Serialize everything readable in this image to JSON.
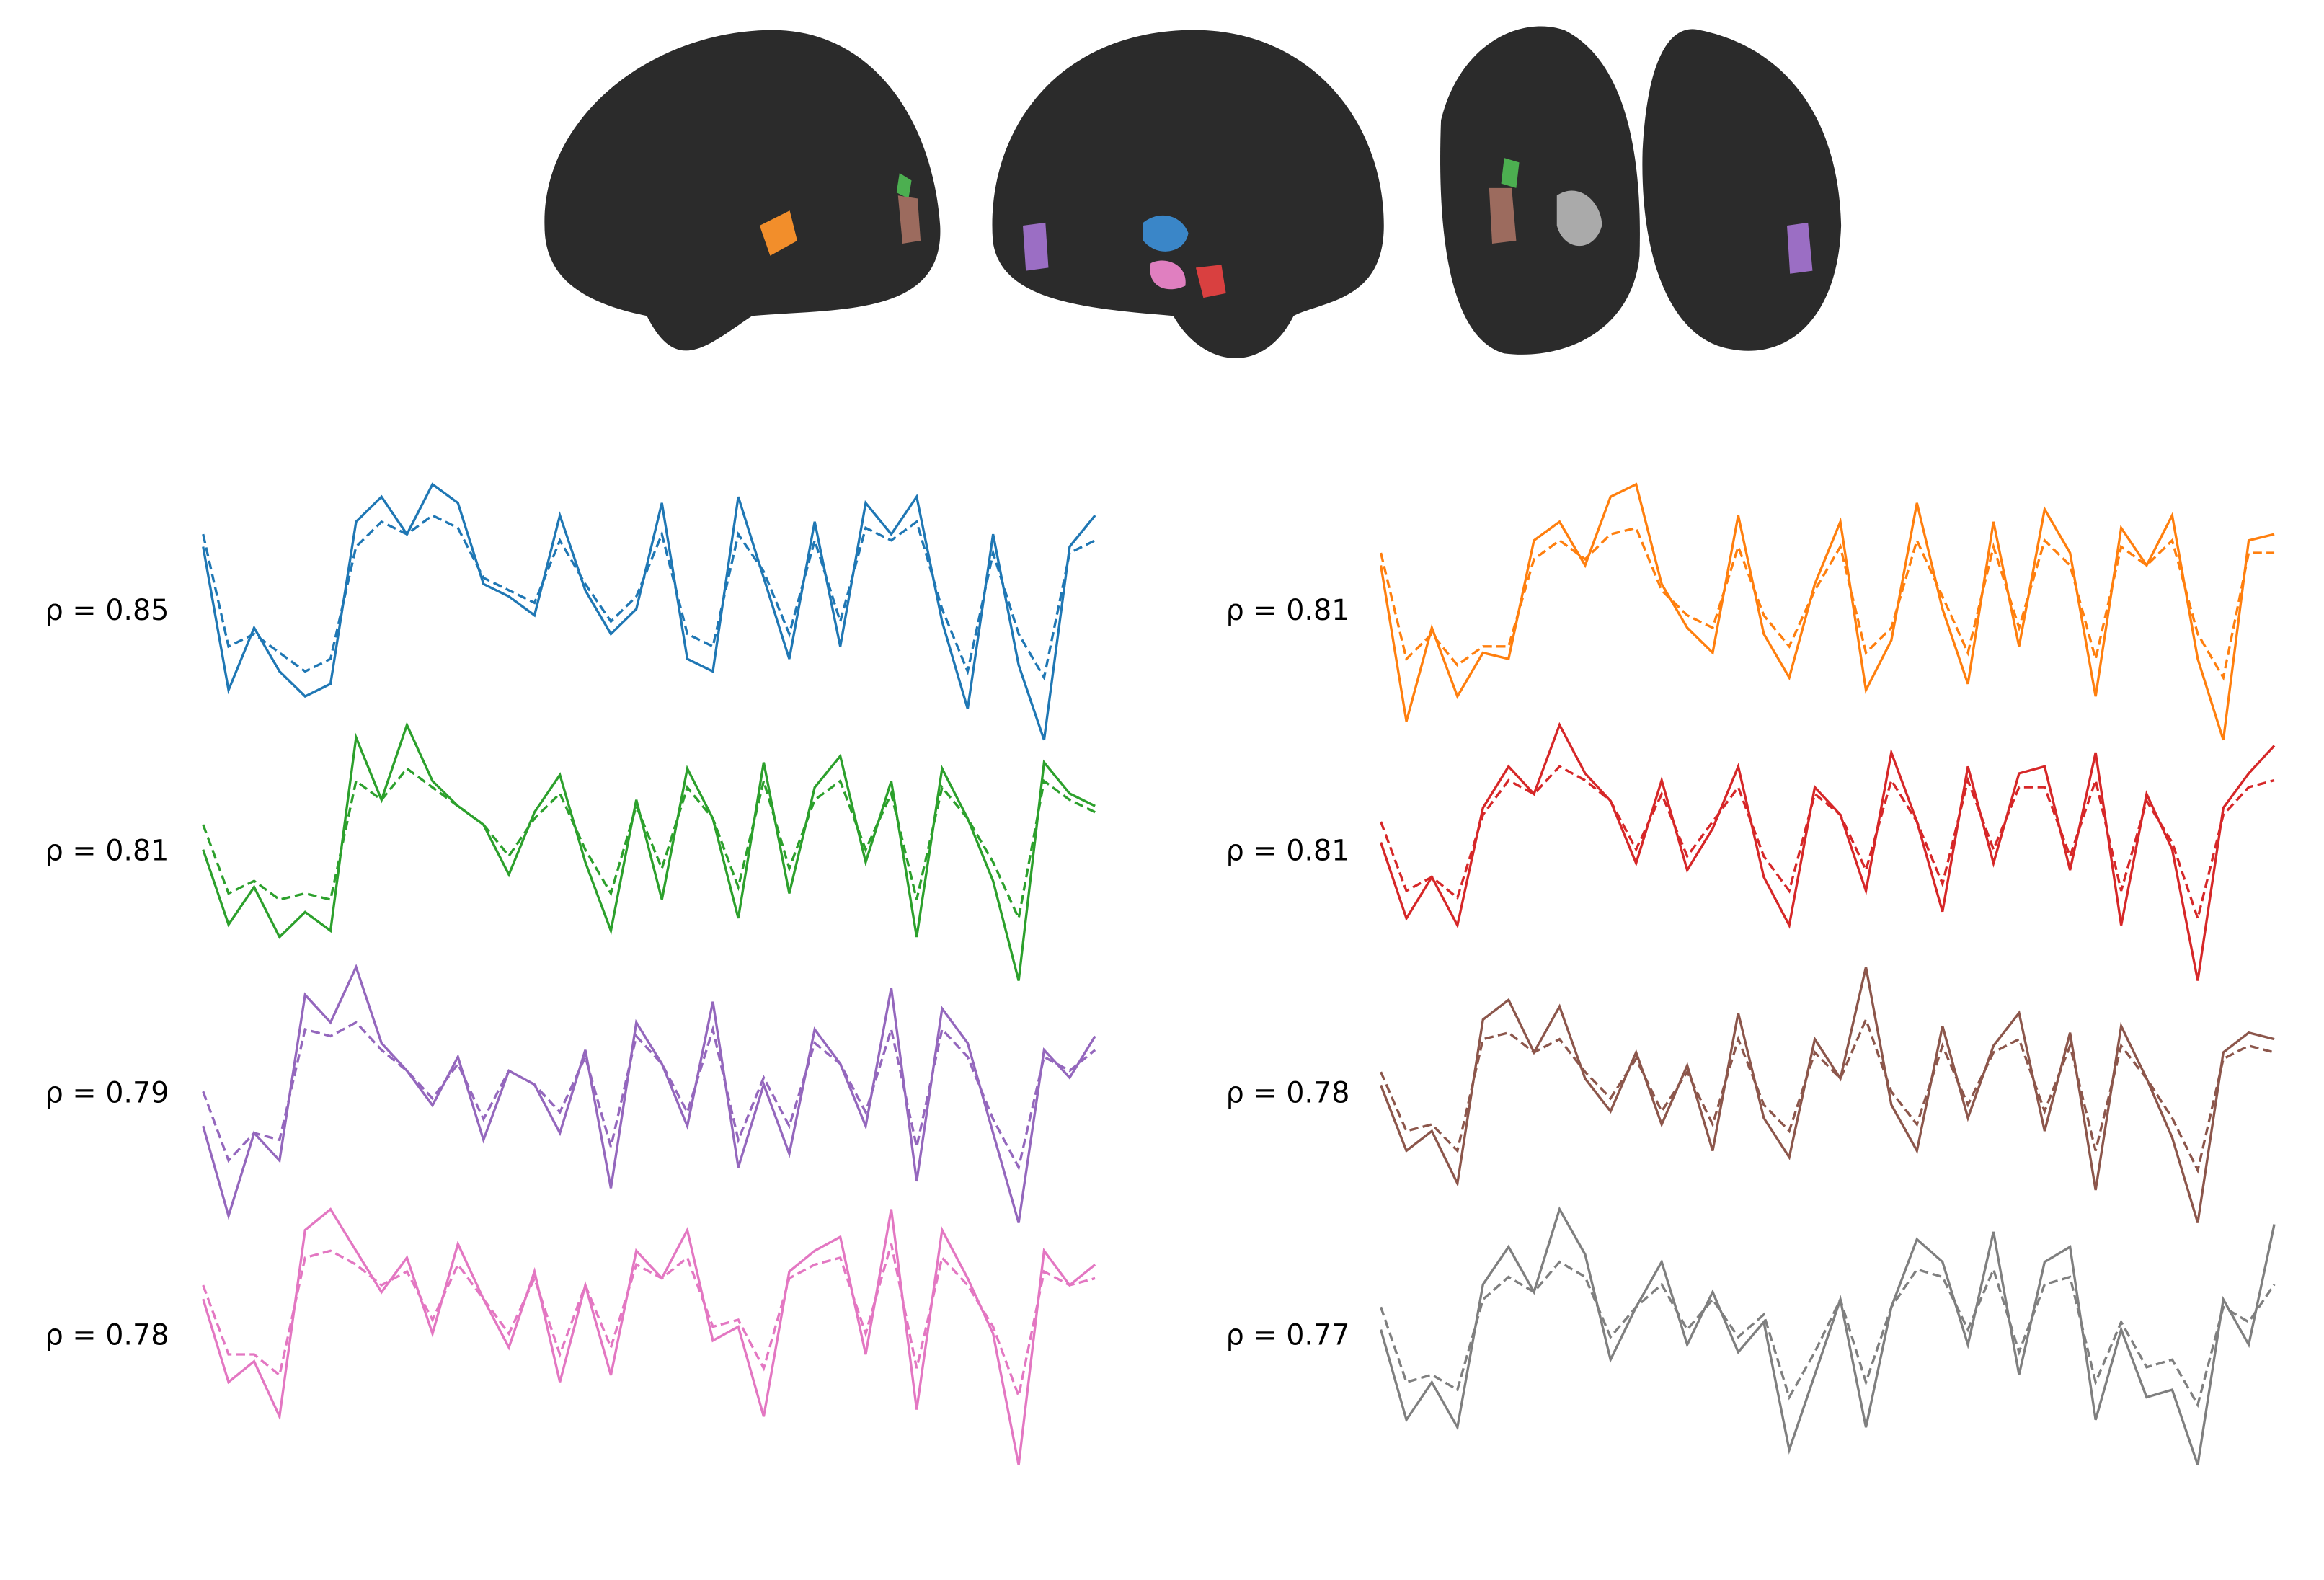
{
  "chart_data": [
    {
      "type": "line",
      "annotation": "ρ = 0.85",
      "series": [
        {
          "color": "#1f77b4",
          "style": "solid",
          "values": [
            0.8,
            -1.5,
            -0.5,
            -1.2,
            -1.6,
            -1.4,
            1.2,
            1.6,
            1.0,
            1.8,
            1.5,
            0.2,
            0.0,
            -0.3,
            1.3,
            0.1,
            -0.6,
            -0.2,
            1.5,
            -1.0,
            -1.2,
            1.6,
            0.3,
            -1.0,
            1.2,
            -0.8,
            1.5,
            1.0,
            1.6,
            -0.4,
            -1.8,
            1.0,
            -1.1,
            -2.3,
            0.8,
            1.3
          ]
        },
        {
          "color": "#1f77b4",
          "style": "dashed",
          "values": [
            1.0,
            -0.8,
            -0.6,
            -0.9,
            -1.2,
            -1.0,
            0.8,
            1.2,
            1.0,
            1.3,
            1.1,
            0.3,
            0.1,
            -0.1,
            0.9,
            0.2,
            -0.4,
            0.0,
            1.0,
            -0.6,
            -0.8,
            1.0,
            0.4,
            -0.6,
            0.9,
            -0.4,
            1.1,
            0.9,
            1.2,
            -0.2,
            -1.2,
            0.7,
            -0.6,
            -1.3,
            0.7,
            0.9
          ]
        }
      ]
    },
    {
      "type": "line",
      "annotation": "ρ = 0.81",
      "series": [
        {
          "color": "#ff7f0e",
          "style": "solid",
          "values": [
            0.6,
            -1.9,
            -0.4,
            -1.5,
            -0.8,
            -0.9,
            1.0,
            1.3,
            0.6,
            1.7,
            1.9,
            0.3,
            -0.4,
            -0.8,
            1.4,
            -0.5,
            -1.2,
            0.3,
            1.3,
            -1.4,
            -0.6,
            1.6,
            -0.1,
            -1.3,
            1.3,
            -0.7,
            1.5,
            0.8,
            -1.5,
            1.2,
            0.6,
            1.4,
            -0.9,
            -2.2,
            1.0,
            1.1
          ]
        },
        {
          "color": "#ff7f0e",
          "style": "dashed",
          "values": [
            0.8,
            -0.9,
            -0.5,
            -1.0,
            -0.7,
            -0.7,
            0.7,
            1.0,
            0.7,
            1.1,
            1.2,
            0.2,
            -0.2,
            -0.4,
            0.9,
            -0.2,
            -0.7,
            0.2,
            0.9,
            -0.8,
            -0.4,
            1.0,
            0.1,
            -0.8,
            0.9,
            -0.4,
            1.0,
            0.6,
            -0.9,
            0.9,
            0.6,
            1.0,
            -0.5,
            -1.2,
            0.8,
            0.8
          ]
        }
      ]
    },
    {
      "type": "line",
      "annotation": "ρ = 0.81",
      "series": [
        {
          "color": "#2ca02c",
          "style": "solid",
          "values": [
            -0.2,
            -1.4,
            -0.8,
            -1.6,
            -1.2,
            -1.5,
            1.6,
            0.6,
            1.8,
            0.9,
            0.5,
            0.2,
            -0.6,
            0.4,
            1.0,
            -0.4,
            -1.5,
            0.6,
            -1.0,
            1.1,
            0.3,
            -1.3,
            1.2,
            -0.9,
            0.8,
            1.3,
            -0.4,
            0.9,
            -1.6,
            1.1,
            0.3,
            -0.7,
            -2.3,
            1.2,
            0.7,
            0.5
          ]
        },
        {
          "color": "#2ca02c",
          "style": "dashed",
          "values": [
            0.2,
            -0.9,
            -0.7,
            -1.0,
            -0.9,
            -1.0,
            0.9,
            0.6,
            1.1,
            0.8,
            0.5,
            0.2,
            -0.3,
            0.3,
            0.7,
            -0.2,
            -0.9,
            0.5,
            -0.5,
            0.8,
            0.3,
            -0.8,
            0.9,
            -0.5,
            0.6,
            0.9,
            -0.2,
            0.7,
            -1.0,
            0.8,
            0.3,
            -0.4,
            -1.3,
            0.9,
            0.6,
            0.4
          ]
        }
      ]
    },
    {
      "type": "line",
      "annotation": "ρ = 0.81",
      "series": [
        {
          "color": "#d62728",
          "style": "solid",
          "values": [
            -0.1,
            -1.2,
            -0.6,
            -1.3,
            0.4,
            1.0,
            0.6,
            1.6,
            0.9,
            0.5,
            -0.4,
            0.8,
            -0.5,
            0.1,
            1.0,
            -0.6,
            -1.3,
            0.7,
            0.3,
            -0.8,
            1.2,
            0.2,
            -1.1,
            1.0,
            -0.4,
            0.9,
            1.0,
            -0.5,
            1.2,
            -1.3,
            0.6,
            -0.2,
            -2.1,
            0.4,
            0.9,
            1.3
          ]
        },
        {
          "color": "#d62728",
          "style": "dashed",
          "values": [
            0.2,
            -0.8,
            -0.6,
            -0.9,
            0.3,
            0.8,
            0.6,
            1.0,
            0.8,
            0.5,
            -0.2,
            0.6,
            -0.3,
            0.2,
            0.7,
            -0.3,
            -0.8,
            0.6,
            0.3,
            -0.5,
            0.8,
            0.2,
            -0.7,
            0.8,
            -0.2,
            0.7,
            0.7,
            -0.3,
            0.8,
            -0.8,
            0.5,
            -0.1,
            -1.2,
            0.3,
            0.7,
            0.8
          ]
        }
      ]
    },
    {
      "type": "line",
      "annotation": "ρ = 0.79",
      "series": [
        {
          "color": "#9467bd",
          "style": "solid",
          "values": [
            -0.5,
            -1.8,
            -0.6,
            -1.0,
            1.4,
            1.0,
            1.8,
            0.7,
            0.3,
            -0.2,
            0.5,
            -0.7,
            0.3,
            0.1,
            -0.6,
            0.6,
            -1.4,
            1.0,
            0.4,
            -0.5,
            1.3,
            -1.1,
            0.1,
            -0.9,
            0.9,
            0.4,
            -0.5,
            1.5,
            -1.3,
            1.2,
            0.7,
            -0.6,
            -1.9,
            0.6,
            0.2,
            0.8
          ]
        },
        {
          "color": "#9467bd",
          "style": "dashed",
          "values": [
            0.0,
            -1.0,
            -0.6,
            -0.7,
            0.9,
            0.8,
            1.0,
            0.6,
            0.3,
            -0.1,
            0.4,
            -0.4,
            0.3,
            0.1,
            -0.3,
            0.5,
            -0.8,
            0.8,
            0.4,
            -0.3,
            0.9,
            -0.7,
            0.2,
            -0.5,
            0.7,
            0.4,
            -0.3,
            0.9,
            -0.8,
            0.9,
            0.5,
            -0.4,
            -1.1,
            0.5,
            0.3,
            0.6
          ]
        }
      ]
    },
    {
      "type": "line",
      "annotation": "ρ = 0.78",
      "series": [
        {
          "color": "#8c564b",
          "style": "solid",
          "values": [
            0.1,
            -0.9,
            -0.6,
            -1.4,
            1.1,
            1.4,
            0.6,
            1.3,
            0.2,
            -0.3,
            0.6,
            -0.5,
            0.4,
            -0.9,
            1.2,
            -0.4,
            -1.0,
            0.8,
            0.2,
            1.9,
            -0.2,
            -0.9,
            1.0,
            -0.4,
            0.7,
            1.2,
            -0.6,
            0.9,
            -1.5,
            1.0,
            0.2,
            -0.7,
            -2.0,
            0.6,
            0.9,
            0.8
          ]
        },
        {
          "color": "#8c564b",
          "style": "dashed",
          "values": [
            0.3,
            -0.6,
            -0.5,
            -0.9,
            0.8,
            0.9,
            0.6,
            0.8,
            0.3,
            -0.1,
            0.5,
            -0.3,
            0.3,
            -0.5,
            0.8,
            -0.2,
            -0.6,
            0.6,
            0.2,
            1.1,
            0.0,
            -0.5,
            0.7,
            -0.2,
            0.6,
            0.8,
            -0.3,
            0.7,
            -0.9,
            0.7,
            0.2,
            -0.4,
            -1.2,
            0.5,
            0.7,
            0.6
          ]
        }
      ]
    },
    {
      "type": "line",
      "annotation": "ρ = 0.78",
      "series": [
        {
          "color": "#e377c2",
          "style": "solid",
          "values": [
            0.2,
            -1.0,
            -0.7,
            -1.5,
            1.2,
            1.5,
            0.9,
            0.3,
            0.8,
            -0.3,
            1.0,
            0.2,
            -0.5,
            0.6,
            -1.0,
            0.4,
            -0.9,
            0.9,
            0.5,
            1.2,
            -0.4,
            -0.2,
            -1.5,
            0.6,
            0.9,
            1.1,
            -0.6,
            1.5,
            -1.4,
            1.2,
            0.5,
            -0.3,
            -2.2,
            0.9,
            0.4,
            0.7
          ]
        },
        {
          "color": "#e377c2",
          "style": "dashed",
          "values": [
            0.4,
            -0.6,
            -0.6,
            -0.9,
            0.8,
            0.9,
            0.7,
            0.4,
            0.6,
            -0.1,
            0.7,
            0.2,
            -0.3,
            0.5,
            -0.6,
            0.4,
            -0.5,
            0.7,
            0.5,
            0.8,
            -0.2,
            -0.1,
            -0.8,
            0.5,
            0.7,
            0.8,
            -0.3,
            1.0,
            -0.8,
            0.8,
            0.4,
            -0.2,
            -1.2,
            0.6,
            0.4,
            0.5
          ]
        }
      ]
    },
    {
      "type": "line",
      "annotation": "ρ = 0.77",
      "series": [
        {
          "color": "#7f7f7f",
          "style": "solid",
          "values": [
            0.0,
            -1.2,
            -0.7,
            -1.3,
            0.6,
            1.1,
            0.5,
            1.6,
            1.0,
            -0.4,
            0.3,
            0.9,
            -0.2,
            0.5,
            -0.3,
            0.1,
            -1.6,
            -0.6,
            0.4,
            -1.3,
            0.3,
            1.2,
            0.9,
            -0.2,
            1.3,
            -0.6,
            0.9,
            1.1,
            -1.2,
            0.0,
            -0.9,
            -0.8,
            -1.8,
            0.4,
            -0.2,
            1.4
          ]
        },
        {
          "color": "#7f7f7f",
          "style": "dashed",
          "values": [
            0.3,
            -0.7,
            -0.6,
            -0.8,
            0.4,
            0.7,
            0.5,
            0.9,
            0.7,
            -0.1,
            0.3,
            0.6,
            0.0,
            0.4,
            -0.1,
            0.2,
            -0.9,
            -0.3,
            0.4,
            -0.7,
            0.3,
            0.8,
            0.7,
            0.0,
            0.8,
            -0.3,
            0.6,
            0.7,
            -0.7,
            0.1,
            -0.5,
            -0.4,
            -1.0,
            0.3,
            0.1,
            0.6
          ]
        }
      ]
    }
  ]
}
